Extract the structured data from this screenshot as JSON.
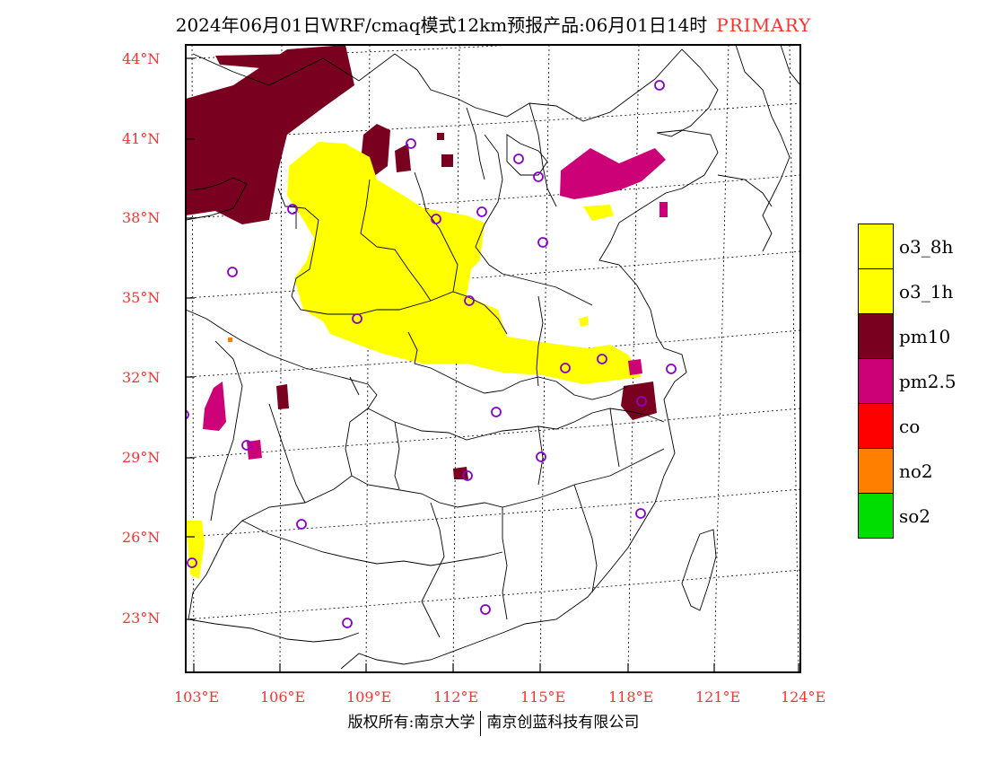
{
  "title": {
    "main": "2024年06月01日WRF/cmaq模式12km预报产品:06月01日14时",
    "tag": "PRIMARY"
  },
  "axes": {
    "lat_labels": [
      "44°N",
      "41°N",
      "38°N",
      "35°N",
      "32°N",
      "29°N",
      "26°N",
      "23°N"
    ],
    "lon_labels": [
      "103°E",
      "106°E",
      "109°E",
      "112°E",
      "115°E",
      "118°E",
      "121°E",
      "124°E"
    ]
  },
  "legend": [
    {
      "label": "o3_8h",
      "color": "#ffff00"
    },
    {
      "label": "o3_1h",
      "color": "#ffff00"
    },
    {
      "label": "pm10",
      "color": "#7a0020"
    },
    {
      "label": "pm2.5",
      "color": "#cc0077"
    },
    {
      "label": "co",
      "color": "#ff0000"
    },
    {
      "label": "no2",
      "color": "#ff7f00"
    },
    {
      "label": "so2",
      "color": "#00dd00"
    }
  ],
  "footer": {
    "left": "版权所有:南京大学",
    "right": "南京创蓝科技有限公司"
  }
}
